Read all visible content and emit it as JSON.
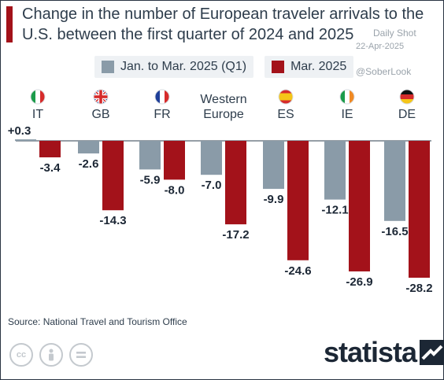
{
  "title": "Change in the number of European traveler arrivals to the U.S. between the first quarter of 2024 and 2025",
  "watermark": {
    "line1": "Daily Shot",
    "line2": "22-Apr-2025",
    "handle": "@SoberLook"
  },
  "source": "Source: National Travel and Tourism Office",
  "brand": "statista",
  "cc_icons": [
    "cc-icon",
    "person-icon",
    "equals-icon"
  ],
  "colors": {
    "q1": "#8a9ba8",
    "mar": "#a3121a",
    "text": "#2e3d4c"
  },
  "chart_data": {
    "type": "bar",
    "categories": [
      "IT",
      "GB",
      "FR",
      "Western Europe",
      "ES",
      "IE",
      "DE"
    ],
    "category_lines": [
      [
        "IT"
      ],
      [
        "GB"
      ],
      [
        "FR"
      ],
      [
        "Western",
        "Europe"
      ],
      [
        "ES"
      ],
      [
        "IE"
      ],
      [
        "DE"
      ]
    ],
    "flags": [
      "flag-it",
      "flag-gb",
      "flag-fr",
      "",
      "flag-es",
      "flag-ie",
      "flag-de"
    ],
    "series": [
      {
        "name": "Jan. to Mar. 2025 (Q1)",
        "color": "#8a9ba8",
        "values": [
          0.3,
          -2.6,
          -5.9,
          -7.0,
          -9.9,
          -12.1,
          -16.5
        ]
      },
      {
        "name": "Mar. 2025",
        "color": "#a3121a",
        "values": [
          -3.4,
          -14.3,
          -8.0,
          -17.2,
          -24.6,
          -26.9,
          -28.2
        ]
      }
    ],
    "data_labels": [
      [
        "+0.3",
        "-2.6",
        "-5.9",
        "-7.0",
        "-9.9",
        "-12.1",
        "-16.5"
      ],
      [
        "-3.4",
        "-14.3",
        "-8.0",
        "-17.2",
        "-24.6",
        "-26.9",
        "-28.2"
      ]
    ],
    "ylim": [
      -28.2,
      0.3
    ],
    "legend": "top",
    "grid": false
  }
}
